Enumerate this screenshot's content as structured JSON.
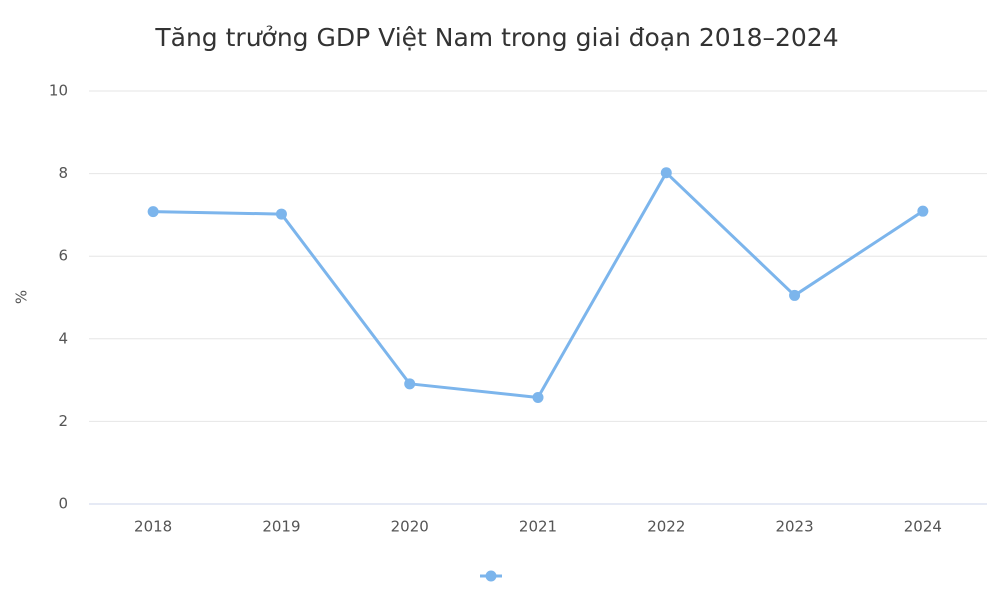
{
  "chart_data": {
    "type": "line",
    "title": "Tăng trưởng GDP Việt Nam trong giai đoạn 2018–2024",
    "y_label": "%",
    "categories": [
      "2018",
      "2019",
      "2020",
      "2021",
      "2022",
      "2023",
      "2024"
    ],
    "series": [
      {
        "color": "#7cb5ec",
        "values": [
          7.08,
          7.02,
          2.91,
          2.58,
          8.02,
          5.05,
          7.09
        ]
      }
    ],
    "ylim": [
      0,
      10
    ],
    "yticks": [
      0,
      2,
      4,
      6,
      8,
      10
    ],
    "grid": true,
    "legend": "bottom"
  }
}
